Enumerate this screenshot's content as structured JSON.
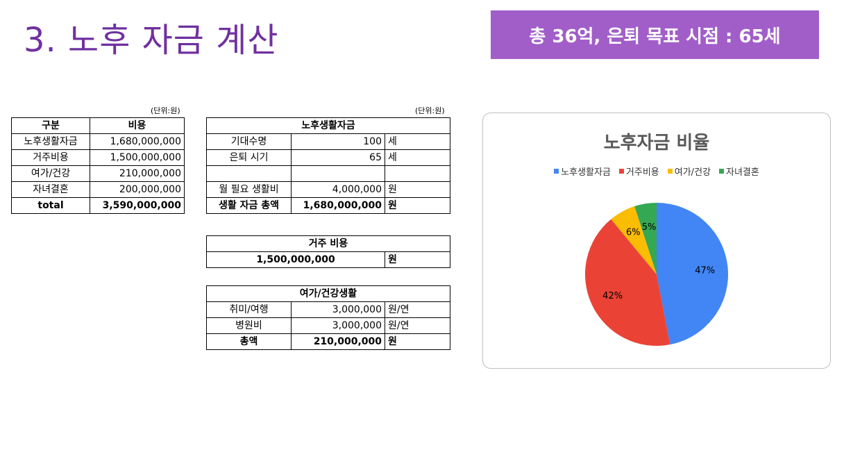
{
  "title": "3. 노후 자금 계산",
  "badge": "총 36억, 은퇴 목표 시점 : 65세",
  "unit_label": "(단위:원)",
  "summary": {
    "headers": [
      "구분",
      "비용"
    ],
    "rows": [
      [
        "노후생활자금",
        "1,680,000,000"
      ],
      [
        "거주비용",
        "1,500,000,000"
      ],
      [
        "여가/건강",
        "210,000,000"
      ],
      [
        "자녀결혼",
        "200,000,000"
      ]
    ],
    "total_label": "total",
    "total_value": "3,590,000,000"
  },
  "living": {
    "header": "노후생활자금",
    "rows": [
      [
        "기대수명",
        "100",
        "세"
      ],
      [
        "은퇴 시기",
        "65",
        "세"
      ],
      [
        "",
        "",
        ""
      ],
      [
        "월 필요 생활비",
        "4,000,000",
        "원"
      ]
    ],
    "total": [
      "생활 자금 총액",
      "1,680,000,000",
      "원"
    ]
  },
  "housing": {
    "header": "거주 비용",
    "value": "1,500,000,000",
    "unit": "원"
  },
  "leisure": {
    "header": "여가/건강생활",
    "rows": [
      [
        "취미/여행",
        "3,000,000",
        "원/연"
      ],
      [
        "병원비",
        "3,000,000",
        "원/연"
      ]
    ],
    "total": [
      "총액",
      "210,000,000",
      "원"
    ]
  },
  "chart_data": {
    "type": "pie",
    "title": "노후자금 비율",
    "legend_position": "top",
    "categories": [
      "노후생활자금",
      "거주비용",
      "여가/건강",
      "자녀결혼"
    ],
    "values": [
      47,
      42,
      6,
      5
    ],
    "labels": [
      "47%",
      "42%",
      "6%",
      "5%"
    ],
    "colors": [
      "#4285f4",
      "#ea4335",
      "#fbbc04",
      "#34a853"
    ]
  }
}
